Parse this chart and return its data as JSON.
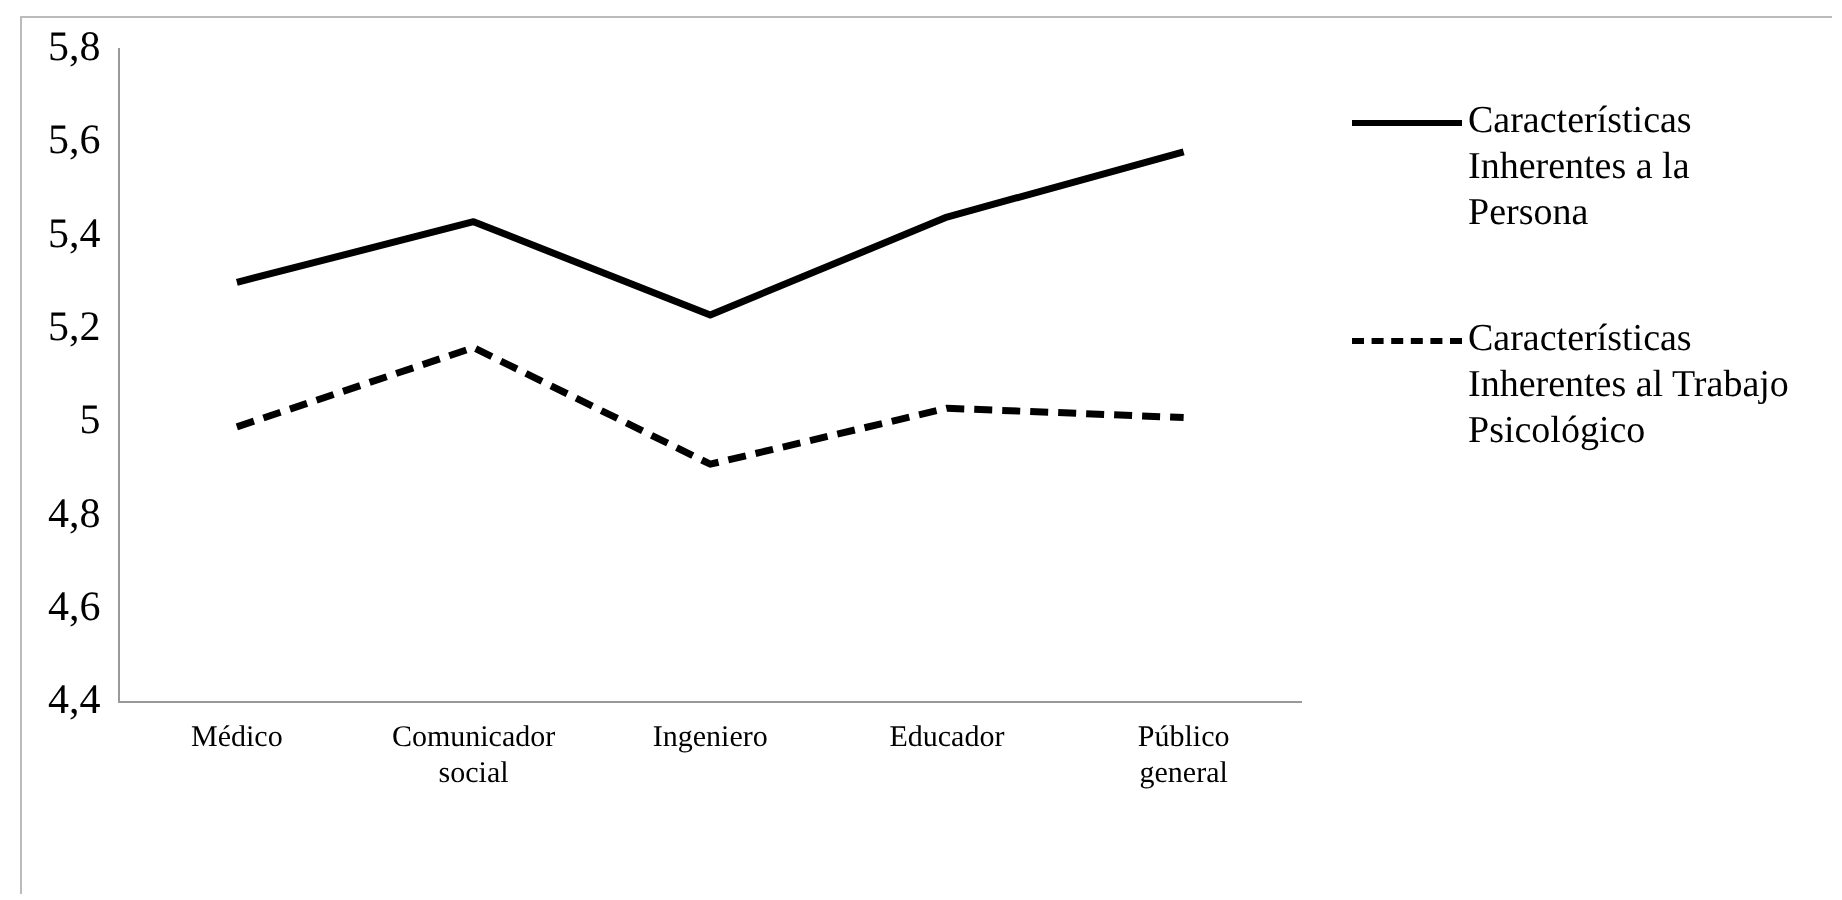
{
  "chart_data": {
    "type": "line",
    "categories": [
      "Médico",
      "Comunicador social",
      "Ingeniero",
      "Educador",
      "Público general"
    ],
    "series": [
      {
        "name": "Características Inherentes a la Persona",
        "color": "#000000",
        "line_style": "solid",
        "values": [
          5.3,
          5.43,
          5.23,
          5.44,
          5.58
        ]
      },
      {
        "name": "Características Inherentes al Trabajo Psicológico",
        "color": "#000000",
        "line_style": "dashed",
        "values": [
          4.99,
          5.16,
          4.91,
          5.03,
          5.01
        ]
      }
    ],
    "ylim": [
      4.4,
      5.8
    ],
    "yticks": [
      {
        "value": 4.4,
        "label": "4,4"
      },
      {
        "value": 4.6,
        "label": "4,6"
      },
      {
        "value": 4.8,
        "label": "4,8"
      },
      {
        "value": 5,
        "label": "5"
      },
      {
        "value": 5.2,
        "label": "5,2"
      },
      {
        "value": 5.4,
        "label": "5,4"
      },
      {
        "value": 5.6,
        "label": "5,6"
      },
      {
        "value": 5.8,
        "label": "5,8"
      }
    ],
    "grid": false,
    "legend": "right",
    "marker": "none"
  }
}
